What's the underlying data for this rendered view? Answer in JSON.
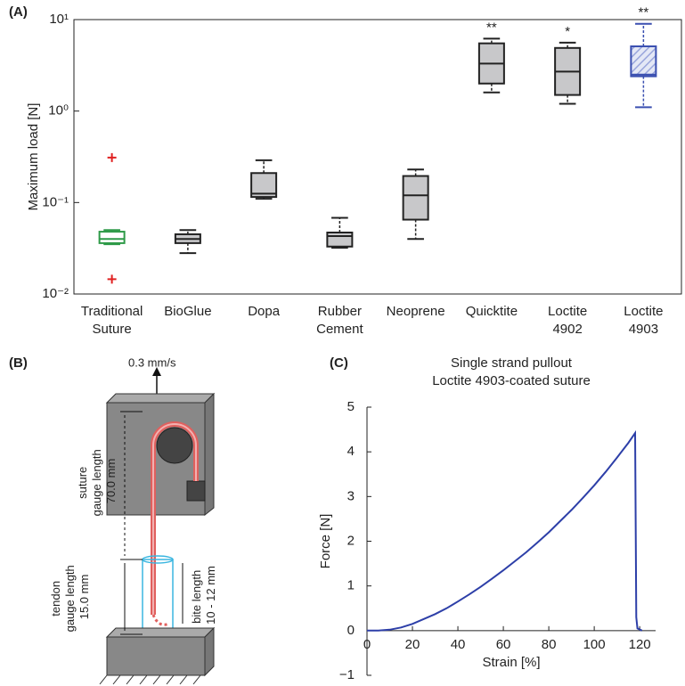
{
  "chart_data": [
    {
      "type": "box",
      "panel": "(A)",
      "ylabel": "Maximum load [N]",
      "log_scale": true,
      "categories": [
        "Traditional Suture",
        "BioGlue",
        "Dopa",
        "Rubber Cement",
        "Neoprene",
        "Quicktite",
        "Loctite 4902",
        "Loctite 4903"
      ],
      "stats": [
        {
          "whislo": 0.035,
          "q1": 0.036,
          "med": 0.04,
          "q3": 0.048,
          "whishi": 0.05,
          "fliers": [
            0.31,
            0.0145
          ]
        },
        {
          "whislo": 0.028,
          "q1": 0.036,
          "med": 0.04,
          "q3": 0.045,
          "whishi": 0.05,
          "fliers": []
        },
        {
          "whislo": 0.11,
          "q1": 0.115,
          "med": 0.125,
          "q3": 0.21,
          "whishi": 0.29,
          "fliers": []
        },
        {
          "whislo": 0.032,
          "q1": 0.033,
          "med": 0.043,
          "q3": 0.047,
          "whishi": 0.068,
          "fliers": []
        },
        {
          "whislo": 0.04,
          "q1": 0.065,
          "med": 0.12,
          "q3": 0.195,
          "whishi": 0.23,
          "fliers": []
        },
        {
          "whislo": 1.6,
          "q1": 2.0,
          "med": 3.3,
          "q3": 5.5,
          "whishi": 6.2,
          "fliers": []
        },
        {
          "whislo": 1.2,
          "q1": 1.5,
          "med": 2.7,
          "q3": 4.9,
          "whishi": 5.6,
          "fliers": []
        },
        {
          "whislo": 1.1,
          "q1": 2.4,
          "med": 2.5,
          "q3": 5.1,
          "whishi": 9.0,
          "fliers": []
        }
      ],
      "colors": [
        "#2e9a48",
        "#222222",
        "#222222",
        "#222222",
        "#222222",
        "#222222",
        "#222222",
        "#3a4fb0"
      ],
      "hatched": [
        false,
        false,
        false,
        false,
        false,
        false,
        false,
        true
      ],
      "annotations": [
        null,
        null,
        null,
        null,
        null,
        "**",
        "*",
        "**"
      ],
      "ylim": [
        0.01,
        10
      ],
      "yticks": [
        {
          "value": 0.01,
          "label": "10⁻²"
        },
        {
          "value": 0.1,
          "label": "10⁻¹"
        },
        {
          "value": 1,
          "label": "10⁰"
        },
        {
          "value": 10,
          "label": "10¹"
        }
      ]
    },
    {
      "type": "line",
      "panel": "(C)",
      "title": "Single strand pullout",
      "subtitle": "Loctite 4903-coated suture",
      "xlabel": "Strain [%]",
      "ylabel": "Force [N]",
      "color": "#2d3fa8",
      "x": [
        0,
        5,
        10,
        15,
        20,
        25,
        30,
        35,
        40,
        45,
        50,
        55,
        60,
        65,
        70,
        75,
        80,
        85,
        90,
        95,
        100,
        105,
        110,
        115,
        118,
        118.5,
        119,
        121
      ],
      "values": [
        0,
        0,
        0.02,
        0.07,
        0.15,
        0.26,
        0.37,
        0.5,
        0.65,
        0.81,
        0.98,
        1.16,
        1.35,
        1.55,
        1.75,
        1.97,
        2.2,
        2.45,
        2.7,
        2.97,
        3.25,
        3.55,
        3.87,
        4.2,
        4.42,
        0.3,
        0.05,
        0
      ],
      "xlim": [
        0,
        127
      ],
      "ylim": [
        -1,
        5
      ],
      "xticks": [
        0,
        20,
        40,
        60,
        80,
        100,
        120
      ],
      "yticks": [
        {
          "value": -1,
          "label": "−1"
        },
        0,
        1,
        2,
        3,
        4,
        5
      ]
    }
  ],
  "diagram": {
    "panel": "(B)",
    "speed": "0.3 mm/s",
    "suture": [
      "suture",
      "gauge length",
      "70.0 mm"
    ],
    "tendon": [
      "tendon",
      "gauge length",
      "15.0 mm"
    ],
    "bite": [
      "bite length",
      "10 - 12 mm"
    ]
  }
}
